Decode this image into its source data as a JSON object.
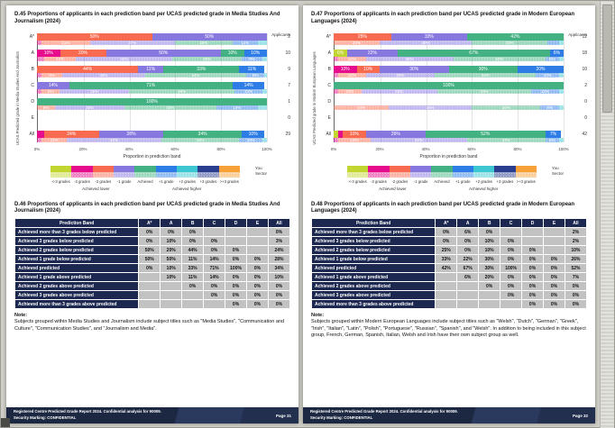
{
  "legend": {
    "you_label": "You",
    "sector_label": "Sector",
    "achieved_lower": "Achieved lower",
    "achieved_higher": "Achieved higher",
    "items": [
      {
        "label": "<-3 grades",
        "color": "#c3d530"
      },
      {
        "label": "-3 grades",
        "color": "#e60c8d"
      },
      {
        "label": "-2 grades",
        "color": "#f96b50"
      },
      {
        "label": "-1 grade",
        "color": "#8678df"
      },
      {
        "label": "Achieved",
        "color": "#43b182"
      },
      {
        "label": "+1 grade",
        "color": "#2e7de6"
      },
      {
        "label": "+2 grades",
        "color": "#3cc7d2"
      },
      {
        "label": "+3 grades",
        "color": "#2a3e90"
      },
      {
        "label": ">+3 grades",
        "color": "#f9a139"
      }
    ]
  },
  "pages": [
    {
      "chart_title": "D.45 Proportions of applicants in each prediction band per UCAS predicted grade in Media Studies And Journalism (2024)",
      "applicants_label": "Applicants",
      "y_axis_label": "UCAS Predicted grade in Media Studies And Journalism",
      "x_axis_label": "Proportion in prediction band",
      "x_ticks": [
        "0%",
        "20%",
        "40%",
        "60%",
        "80%",
        "100%"
      ],
      "chart_data": {
        "type": "bar",
        "rows": [
          {
            "grade": "A*",
            "applicants": "2",
            "you": [
              {
                "band": 2,
                "pct": 50
              },
              {
                "band": 3,
                "pct": 50
              }
            ],
            "sector": [
              {
                "band": 1,
                "pct": 2
              },
              {
                "band": 2,
                "pct": 21
              },
              {
                "band": 3,
                "pct": 37
              },
              {
                "band": 4,
                "pct": 25
              },
              {
                "band": 5,
                "pct": 11
              },
              {
                "band": 6,
                "pct": 4
              }
            ]
          },
          {
            "grade": "A",
            "applicants": "10",
            "you": [
              {
                "band": 1,
                "pct": 10
              },
              {
                "band": 2,
                "pct": 20
              },
              {
                "band": 3,
                "pct": 50
              },
              {
                "band": 4,
                "pct": 10
              },
              {
                "band": 5,
                "pct": 10
              }
            ],
            "sector": [
              {
                "band": 1,
                "pct": 3
              },
              {
                "band": 2,
                "pct": 14
              },
              {
                "band": 3,
                "pct": 42
              },
              {
                "band": 4,
                "pct": 30
              },
              {
                "band": 5,
                "pct": 9
              },
              {
                "band": 6,
                "pct": 2
              }
            ]
          },
          {
            "grade": "B",
            "applicants": "9",
            "you": [
              {
                "band": 2,
                "pct": 44
              },
              {
                "band": 3,
                "pct": 11
              },
              {
                "band": 4,
                "pct": 33
              },
              {
                "band": 5,
                "pct": 11
              }
            ],
            "sector": [
              {
                "band": 1,
                "pct": 2
              },
              {
                "band": 2,
                "pct": 9
              },
              {
                "band": 3,
                "pct": 36
              },
              {
                "band": 4,
                "pct": 44
              },
              {
                "band": 5,
                "pct": 8
              },
              {
                "band": 6,
                "pct": 1
              }
            ]
          },
          {
            "grade": "C",
            "applicants": "7",
            "you": [
              {
                "band": 3,
                "pct": 14
              },
              {
                "band": 4,
                "pct": 71
              },
              {
                "band": 5,
                "pct": 14
              }
            ],
            "sector": [
              {
                "band": 1,
                "pct": 2
              },
              {
                "band": 2,
                "pct": 8
              },
              {
                "band": 3,
                "pct": 30
              },
              {
                "band": 4,
                "pct": 46
              },
              {
                "band": 5,
                "pct": 12
              },
              {
                "band": 6,
                "pct": 2
              }
            ]
          },
          {
            "grade": "D",
            "applicants": "1",
            "you": [
              {
                "band": 4,
                "pct": 100
              }
            ],
            "sector": [
              {
                "band": 2,
                "pct": 8
              },
              {
                "band": 3,
                "pct": 30
              },
              {
                "band": 4,
                "pct": 40
              },
              {
                "band": 5,
                "pct": 18
              },
              {
                "band": 6,
                "pct": 4
              }
            ]
          },
          {
            "grade": "E",
            "applicants": "0",
            "you": [],
            "sector": []
          },
          {
            "grade": "All",
            "applicants": "29",
            "you": [
              {
                "band": 1,
                "pct": 3
              },
              {
                "band": 2,
                "pct": 24
              },
              {
                "band": 3,
                "pct": 28
              },
              {
                "band": 4,
                "pct": 34
              },
              {
                "band": 5,
                "pct": 10
              }
            ],
            "sector": [
              {
                "band": 1,
                "pct": 2
              },
              {
                "band": 2,
                "pct": 11
              },
              {
                "band": 3,
                "pct": 41
              },
              {
                "band": 4,
                "pct": 34
              },
              {
                "band": 5,
                "pct": 10
              },
              {
                "band": 6,
                "pct": 2
              }
            ]
          }
        ]
      },
      "table_title": "D.46 Proportions of applicants in each prediction band per UCAS predicted grade in Media Studies And Journalism (2024)",
      "table": {
        "header": [
          "Prediction Band",
          "A*",
          "A",
          "B",
          "C",
          "D",
          "E",
          "All"
        ],
        "rows": [
          {
            "label": "Achieved more than 3 grades below predicted",
            "values": [
              "0%",
              "0%",
              "0%",
              "",
              "",
              "",
              "0%"
            ]
          },
          {
            "label": "Achieved 3 grades below predicted",
            "values": [
              "0%",
              "10%",
              "0%",
              "0%",
              "",
              "",
              "3%"
            ]
          },
          {
            "label": "Achieved 2 grades below predicted",
            "values": [
              "50%",
              "20%",
              "44%",
              "0%",
              "0%",
              "",
              "24%"
            ]
          },
          {
            "label": "Achieved 1 grade below predicted",
            "values": [
              "50%",
              "50%",
              "11%",
              "14%",
              "0%",
              "0%",
              "28%"
            ]
          },
          {
            "label": "Achieved predicted",
            "values": [
              "0%",
              "10%",
              "33%",
              "71%",
              "100%",
              "0%",
              "34%"
            ]
          },
          {
            "label": "Achieved 1 grade above predicted",
            "values": [
              "",
              "10%",
              "11%",
              "14%",
              "0%",
              "0%",
              "10%"
            ]
          },
          {
            "label": "Achieved 2 grades above predicted",
            "values": [
              "",
              "",
              "0%",
              "0%",
              "0%",
              "0%",
              "0%"
            ]
          },
          {
            "label": "Achieved 3 grades above predicted",
            "values": [
              "",
              "",
              "",
              "0%",
              "0%",
              "0%",
              "0%"
            ]
          },
          {
            "label": "Achieved more than 3 grades above predicted",
            "values": [
              "",
              "",
              "",
              "",
              "0%",
              "0%",
              "0%"
            ]
          }
        ]
      },
      "note_label": "Note:",
      "note": "Subjects grouped within Media Studies and Journalism include subject titles such as \"Media Studies\", \"Communication and Culture\", \"Communication Studies\", and \"Journalism and Media\".",
      "footer": {
        "line1": "Registered Centre Predicted Grade Report 2024. Confidential analysis for 90009.",
        "line2": "Security Marking: CONFIDENTIAL",
        "page": "Page 31"
      }
    },
    {
      "chart_title": "D.47 Proportions of applicants in each prediction band per UCAS predicted grade in Modern European Languages (2024)",
      "applicants_label": "Applicants",
      "y_axis_label": "UCAS Predicted grade in Modern European Languages",
      "x_axis_label": "Proportion in prediction band",
      "x_ticks": [
        "0%",
        "20%",
        "40%",
        "60%",
        "80%",
        "100%"
      ],
      "chart_data": {
        "type": "bar",
        "rows": [
          {
            "grade": "A*",
            "applicants": "12",
            "you": [
              {
                "band": 2,
                "pct": 25
              },
              {
                "band": 3,
                "pct": 33
              },
              {
                "band": 4,
                "pct": 42
              }
            ],
            "sector": [
              {
                "band": 2,
                "pct": 20
              },
              {
                "band": 3,
                "pct": 40
              },
              {
                "band": 4,
                "pct": 33
              },
              {
                "band": 5,
                "pct": 5
              },
              {
                "band": 6,
                "pct": 2
              }
            ]
          },
          {
            "grade": "A",
            "applicants": "18",
            "you": [
              {
                "band": 0,
                "pct": 6
              },
              {
                "band": 3,
                "pct": 22
              },
              {
                "band": 4,
                "pct": 67
              },
              {
                "band": 5,
                "pct": 6
              }
            ],
            "sector": [
              {
                "band": 1,
                "pct": 2
              },
              {
                "band": 2,
                "pct": 12
              },
              {
                "band": 3,
                "pct": 38
              },
              {
                "band": 4,
                "pct": 40
              },
              {
                "band": 5,
                "pct": 6
              },
              {
                "band": 6,
                "pct": 2
              }
            ]
          },
          {
            "grade": "B",
            "applicants": "10",
            "you": [
              {
                "band": 1,
                "pct": 10
              },
              {
                "band": 2,
                "pct": 10
              },
              {
                "band": 3,
                "pct": 30
              },
              {
                "band": 4,
                "pct": 30
              },
              {
                "band": 5,
                "pct": 20
              }
            ],
            "sector": [
              {
                "band": 1,
                "pct": 2
              },
              {
                "band": 2,
                "pct": 12
              },
              {
                "band": 3,
                "pct": 30
              },
              {
                "band": 4,
                "pct": 44
              },
              {
                "band": 5,
                "pct": 10
              },
              {
                "band": 6,
                "pct": 2
              }
            ]
          },
          {
            "grade": "C",
            "applicants": "2",
            "you": [
              {
                "band": 4,
                "pct": 100
              }
            ],
            "sector": [
              {
                "band": 1,
                "pct": 2
              },
              {
                "band": 2,
                "pct": 10
              },
              {
                "band": 3,
                "pct": 33
              },
              {
                "band": 4,
                "pct": 41
              },
              {
                "band": 5,
                "pct": 12
              },
              {
                "band": 6,
                "pct": 2
              }
            ]
          },
          {
            "grade": "D",
            "applicants": "0",
            "you": [],
            "sector": [
              {
                "band": 2,
                "pct": 24
              },
              {
                "band": 3,
                "pct": 36
              },
              {
                "band": 4,
                "pct": 30
              },
              {
                "band": 5,
                "pct": 8
              },
              {
                "band": 6,
                "pct": 2
              }
            ]
          },
          {
            "grade": "E",
            "applicants": "0",
            "you": [],
            "sector": []
          },
          {
            "grade": "All",
            "applicants": "42",
            "you": [
              {
                "band": 0,
                "pct": 2
              },
              {
                "band": 1,
                "pct": 2
              },
              {
                "band": 2,
                "pct": 10
              },
              {
                "band": 3,
                "pct": 26
              },
              {
                "band": 4,
                "pct": 52
              },
              {
                "band": 5,
                "pct": 7
              }
            ],
            "sector": [
              {
                "band": 1,
                "pct": 2
              },
              {
                "band": 2,
                "pct": 14
              },
              {
                "band": 3,
                "pct": 42
              },
              {
                "band": 4,
                "pct": 34
              },
              {
                "band": 5,
                "pct": 6
              },
              {
                "band": 6,
                "pct": 2
              }
            ]
          }
        ]
      },
      "table_title": "D.48 Proportions of applicants in each prediction band per UCAS predicted grade in Modern European Languages (2024)",
      "table": {
        "header": [
          "Prediction Band",
          "A*",
          "A",
          "B",
          "C",
          "D",
          "E",
          "All"
        ],
        "rows": [
          {
            "label": "Achieved more than 3 grades below predicted",
            "values": [
              "0%",
              "6%",
              "0%",
              "",
              "",
              "",
              "2%"
            ]
          },
          {
            "label": "Achieved 3 grades below predicted",
            "values": [
              "0%",
              "0%",
              "10%",
              "0%",
              "",
              "",
              "2%"
            ]
          },
          {
            "label": "Achieved 2 grades below predicted",
            "values": [
              "25%",
              "0%",
              "10%",
              "0%",
              "0%",
              "",
              "10%"
            ]
          },
          {
            "label": "Achieved 1 grade below predicted",
            "values": [
              "33%",
              "22%",
              "30%",
              "0%",
              "0%",
              "0%",
              "26%"
            ]
          },
          {
            "label": "Achieved predicted",
            "values": [
              "42%",
              "67%",
              "30%",
              "100%",
              "0%",
              "0%",
              "52%"
            ]
          },
          {
            "label": "Achieved 1 grade above predicted",
            "values": [
              "",
              "6%",
              "20%",
              "0%",
              "0%",
              "0%",
              "7%"
            ]
          },
          {
            "label": "Achieved 2 grades above predicted",
            "values": [
              "",
              "",
              "0%",
              "0%",
              "0%",
              "0%",
              "0%"
            ]
          },
          {
            "label": "Achieved 3 grades above predicted",
            "values": [
              "",
              "",
              "",
              "0%",
              "0%",
              "0%",
              "0%"
            ]
          },
          {
            "label": "Achieved more than 3 grades above predicted",
            "values": [
              "",
              "",
              "",
              "",
              "0%",
              "0%",
              "0%"
            ]
          }
        ]
      },
      "note_label": "Note:",
      "note": "Subjects grouped within Modern European Languages include subject titles such as \"Welsh\", \"Dutch\", \"German\", \"Greek\", \"Irish\", \"Italian\", \"Latin\", \"Polish\", \"Portuguese\", \"Russian\", \"Spanish\", and \"Welsh\". In addition to being included in this subject group, French, German, Spanish, Italian, Welsh and Irish have their own subject group as well.",
      "footer": {
        "line1": "Registered Centre Predicted Grade Report 2024. Confidential analysis for 90009.",
        "line2": "Security Marking: CONFIDENTIAL",
        "page": "Page 32"
      }
    }
  ]
}
